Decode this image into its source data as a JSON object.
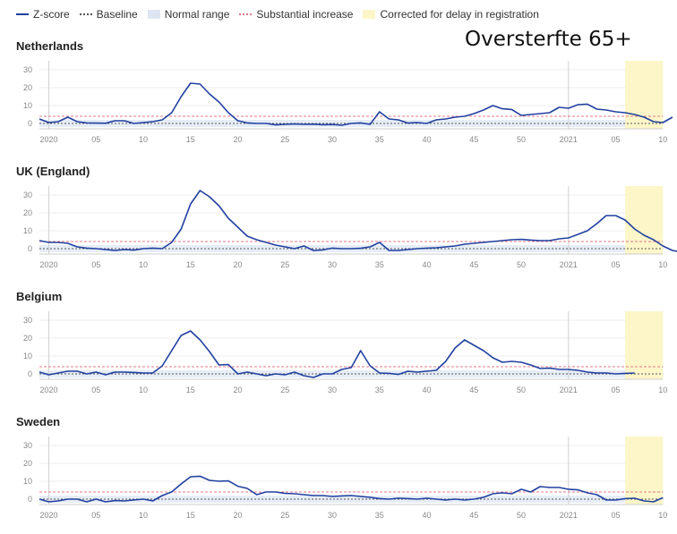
{
  "legend": [
    {
      "label": "Z-score",
      "kind": "line",
      "color": "#2140a0"
    },
    {
      "label": "Baseline",
      "kind": "dot",
      "color": "#555555"
    },
    {
      "label": "Normal range",
      "kind": "box",
      "color": "#dde6f2"
    },
    {
      "label": "Substantial increase",
      "kind": "dash",
      "color": "#e07b8a"
    },
    {
      "label": "Corrected for delay in registration",
      "kind": "box",
      "color": "#fdf6c9"
    }
  ],
  "main_title": "Oversterfte 65+",
  "chart_data": [
    {
      "type": "line",
      "title": "Netherlands",
      "ylim": [
        -3,
        35
      ],
      "yticks": [
        0,
        10,
        20,
        30
      ],
      "x_tick_labels": [
        "2020",
        "05",
        "10",
        "15",
        "20",
        "25",
        "30",
        "35",
        "40",
        "45",
        "50",
        "2021",
        "05",
        "10"
      ],
      "baseline": 0,
      "normal_range": [
        -2,
        2
      ],
      "substantial_increase": 4,
      "corrected_from_week_index": 62,
      "y": [
        2.5,
        0.5,
        1,
        3.5,
        1,
        0.3,
        0.2,
        0.1,
        1.5,
        1.5,
        0,
        0.5,
        1,
        2,
        6,
        15,
        22.5,
        22,
        16.5,
        12,
        6,
        1.5,
        0.3,
        0,
        0,
        -0.8,
        -0.5,
        -0.3,
        -0.5,
        -0.4,
        -0.7,
        -0.6,
        -1,
        0,
        0.3,
        -0.5,
        6.5,
        2.5,
        2,
        0.2,
        0.5,
        0,
        2,
        2.5,
        3.5,
        4,
        5.5,
        7.5,
        10,
        8.2,
        7.8,
        4.5,
        5,
        5.5,
        6,
        9,
        8.5,
        10.5,
        10.8,
        8,
        7.5,
        6.5,
        6,
        5,
        3.5,
        1,
        0.5,
        3.5
      ]
    },
    {
      "type": "line",
      "title": "UK (England)",
      "ylim": [
        -3,
        35
      ],
      "yticks": [
        0,
        10,
        20,
        30
      ],
      "x_tick_labels": [
        "2020",
        "05",
        "10",
        "15",
        "20",
        "25",
        "30",
        "35",
        "40",
        "45",
        "50",
        "2021",
        "05",
        "10"
      ],
      "baseline": 0,
      "normal_range": [
        -2,
        2
      ],
      "substantial_increase": 4,
      "corrected_from_week_index": 62,
      "y": [
        4.5,
        3.5,
        3.5,
        3,
        1,
        0.3,
        0,
        -0.5,
        -1,
        -0.5,
        -0.8,
        0,
        0.3,
        0,
        3.5,
        11,
        25,
        32.5,
        29,
        24,
        17,
        12,
        7,
        5,
        3.5,
        2,
        1,
        0,
        1.5,
        -1,
        -0.7,
        0.3,
        0,
        0,
        0.2,
        1,
        3.5,
        -1,
        -1,
        -0.5,
        0,
        0.3,
        0.5,
        1,
        1.5,
        2.5,
        3,
        3.5,
        4,
        4.5,
        5,
        5.2,
        4.8,
        4.5,
        4.5,
        5.5,
        6,
        8,
        10,
        14,
        18.5,
        18.5,
        16,
        11,
        7.5,
        5,
        1.5,
        -1,
        -2
      ]
    },
    {
      "type": "line",
      "title": "Belgium",
      "ylim": [
        -3,
        35
      ],
      "yticks": [
        0,
        10,
        20,
        30
      ],
      "x_tick_labels": [
        "2020",
        "05",
        "10",
        "15",
        "20",
        "25",
        "30",
        "35",
        "40",
        "45",
        "50",
        "2021",
        "05",
        "10"
      ],
      "baseline": 0,
      "normal_range": [
        -2,
        2
      ],
      "substantial_increase": 4,
      "corrected_from_week_index": 62,
      "y": [
        1,
        -0.5,
        0.5,
        1.5,
        1.5,
        0,
        1,
        -0.5,
        1,
        1,
        0.8,
        0.5,
        0.5,
        4.5,
        13,
        21.5,
        24,
        19,
        12.5,
        5,
        5.2,
        0,
        1,
        0,
        -1,
        0,
        -0.5,
        1,
        -1,
        -2,
        0,
        0,
        2.5,
        3.5,
        13,
        4.5,
        0.5,
        0.3,
        -0.3,
        1.5,
        1,
        1.5,
        2,
        7,
        14.5,
        19,
        16,
        13,
        9,
        6.5,
        7,
        6.5,
        5,
        3,
        3.2,
        2.5,
        2.5,
        2,
        1,
        0.5,
        0.5,
        0,
        0.3,
        0.5
      ]
    },
    {
      "type": "line",
      "title": "Sweden",
      "ylim": [
        -3,
        35
      ],
      "yticks": [
        0,
        10,
        20,
        30
      ],
      "x_tick_labels": [
        "2020",
        "05",
        "10",
        "15",
        "20",
        "25",
        "30",
        "35",
        "40",
        "45",
        "50",
        "2021",
        "05",
        "10"
      ],
      "baseline": 0,
      "normal_range": [
        -2,
        2
      ],
      "substantial_increase": 4,
      "corrected_from_week_index": 62,
      "y": [
        0,
        -1.5,
        -1,
        0,
        0,
        -1.5,
        0,
        -1.5,
        -0.8,
        -1,
        -0.5,
        0,
        -1,
        2,
        4,
        8.5,
        12.5,
        12.8,
        10.5,
        10,
        10.2,
        7.2,
        6,
        2.5,
        4,
        4,
        3.2,
        3,
        2.5,
        2,
        2,
        1.5,
        1.8,
        2,
        1.5,
        1,
        0.3,
        0,
        0.5,
        0.3,
        0,
        0.5,
        0,
        -0.5,
        0,
        -0.5,
        0,
        1,
        3,
        3.5,
        3,
        5.5,
        4,
        7,
        6.5,
        6.5,
        5.5,
        5.2,
        3.5,
        2.5,
        -0.5,
        -0.5,
        0.3,
        0.5,
        -1,
        -1.5,
        0.8
      ]
    }
  ]
}
